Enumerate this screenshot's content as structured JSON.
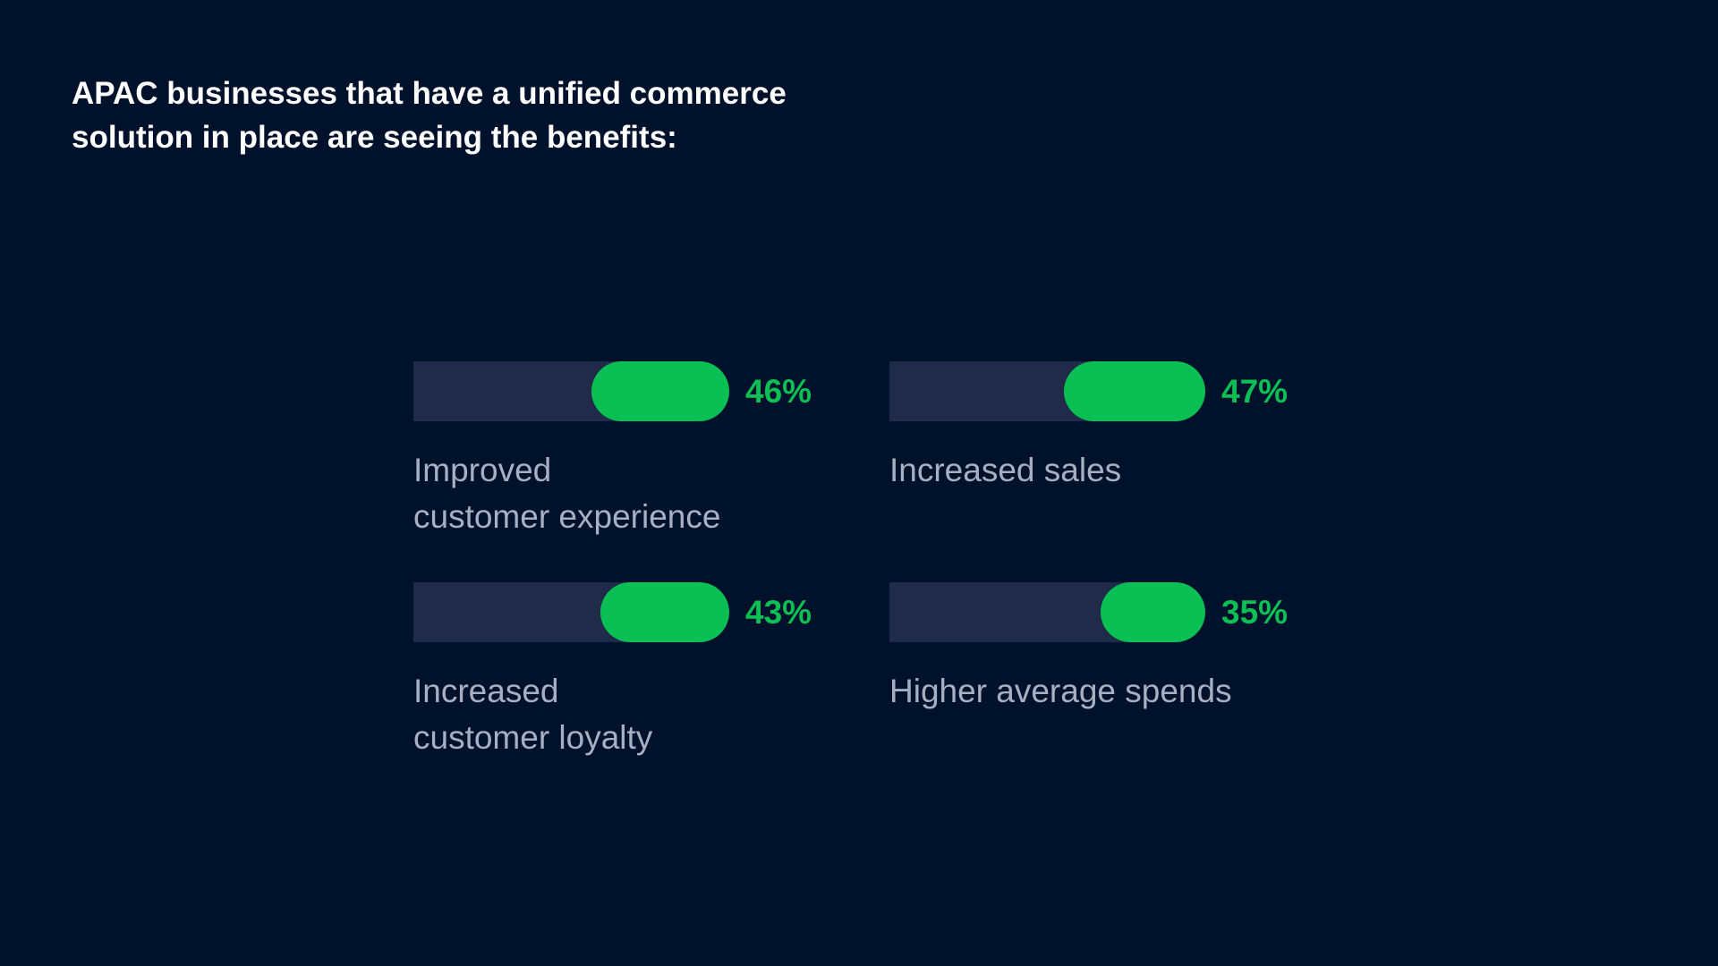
{
  "title_lines": [
    "APAC businesses that have a unified commerce",
    "solution in place are seeing the benefits:"
  ],
  "colors": {
    "background": "#00112b",
    "track": "#1f2b48",
    "accent": "#0abf53",
    "label": "#a7b0c2",
    "title": "#ffffff"
  },
  "chart_data": {
    "type": "bar",
    "unit": "%",
    "items": [
      {
        "value_label": "46%",
        "value": 46,
        "label_lines": [
          "Improved",
          "customer experience"
        ]
      },
      {
        "value_label": "47%",
        "value": 47,
        "label_lines": [
          "Increased sales"
        ]
      },
      {
        "value_label": "43%",
        "value": 43,
        "label_lines": [
          "Increased",
          "customer loyalty"
        ]
      },
      {
        "value_label": "35%",
        "value": 35,
        "label_lines": [
          "Higher average spends"
        ]
      }
    ]
  }
}
